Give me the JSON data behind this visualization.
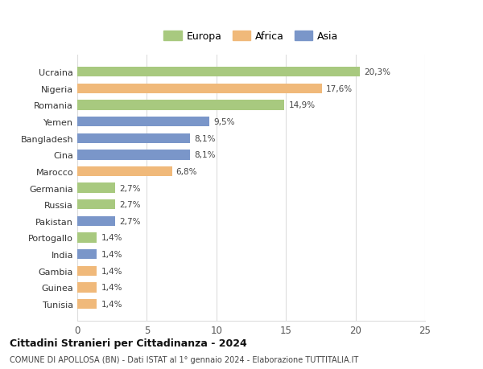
{
  "categories": [
    "Tunisia",
    "Guinea",
    "Gambia",
    "India",
    "Portogallo",
    "Pakistan",
    "Russia",
    "Germania",
    "Marocco",
    "Cina",
    "Bangladesh",
    "Yemen",
    "Romania",
    "Nigeria",
    "Ucraina"
  ],
  "values": [
    1.4,
    1.4,
    1.4,
    1.4,
    1.4,
    2.7,
    2.7,
    2.7,
    6.8,
    8.1,
    8.1,
    9.5,
    14.9,
    17.6,
    20.3
  ],
  "continents": [
    "Africa",
    "Africa",
    "Africa",
    "Asia",
    "Europa",
    "Asia",
    "Europa",
    "Europa",
    "Africa",
    "Asia",
    "Asia",
    "Asia",
    "Europa",
    "Africa",
    "Europa"
  ],
  "colors": {
    "Europa": "#a8c97f",
    "Africa": "#f0b97a",
    "Asia": "#7a96c9"
  },
  "legend_labels": [
    "Europa",
    "Africa",
    "Asia"
  ],
  "title1": "Cittadini Stranieri per Cittadinanza - 2024",
  "title2": "COMUNE DI APOLLOSA (BN) - Dati ISTAT al 1° gennaio 2024 - Elaborazione TUTTITALIA.IT",
  "xlim": [
    0,
    25
  ],
  "xticks": [
    0,
    5,
    10,
    15,
    20,
    25
  ],
  "bg_color": "#ffffff",
  "grid_color": "#dddddd",
  "bar_height": 0.6,
  "value_labels": [
    "1,4%",
    "1,4%",
    "1,4%",
    "1,4%",
    "1,4%",
    "2,7%",
    "2,7%",
    "2,7%",
    "6,8%",
    "8,1%",
    "8,1%",
    "9,5%",
    "14,9%",
    "17,6%",
    "20,3%"
  ]
}
